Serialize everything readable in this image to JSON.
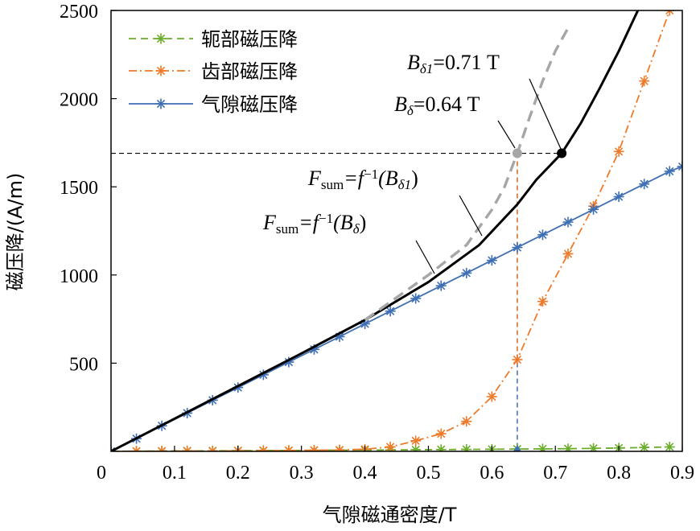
{
  "chart_data": {
    "type": "line",
    "xlabel": "气隙磁通密度/T",
    "ylabel": "磁压降/(A/m)",
    "xlim": [
      0,
      0.9
    ],
    "ylim": [
      0,
      2500
    ],
    "x_ticks": [
      0,
      0.1,
      0.2,
      0.3,
      0.4,
      0.5,
      0.6,
      0.7,
      0.8,
      0.9
    ],
    "x_tick_labels": [
      "0",
      "0.1",
      "0.2",
      "0.3",
      "0.4",
      "0.5",
      "0.6",
      "0.7",
      "0.8",
      "0.9"
    ],
    "y_ticks": [
      500,
      1000,
      1500,
      2000,
      2500
    ],
    "y_tick_labels": [
      "500",
      "1000",
      "1500",
      "2000",
      "2500"
    ],
    "legend_position": "top-left",
    "series": [
      {
        "name": "轭部磁压降",
        "color": "#6aad2a",
        "style": "dashed",
        "marker": "asterisk",
        "x": [
          0.0,
          0.04,
          0.08,
          0.12,
          0.16,
          0.2,
          0.24,
          0.28,
          0.32,
          0.36,
          0.4,
          0.44,
          0.48,
          0.52,
          0.56,
          0.6,
          0.64,
          0.68,
          0.72,
          0.76,
          0.8,
          0.84,
          0.88
        ],
        "y": [
          0,
          1,
          2,
          3,
          3,
          4,
          5,
          5,
          6,
          7,
          7,
          8,
          9,
          10,
          11,
          12,
          13,
          14,
          15,
          17,
          19,
          22,
          25
        ]
      },
      {
        "name": "齿部磁压降",
        "color": "#ee7a2a",
        "style": "dashdot",
        "marker": "asterisk",
        "x": [
          0.0,
          0.04,
          0.08,
          0.12,
          0.16,
          0.2,
          0.24,
          0.28,
          0.32,
          0.36,
          0.4,
          0.44,
          0.48,
          0.52,
          0.56,
          0.6,
          0.64,
          0.68,
          0.72,
          0.76,
          0.8,
          0.84,
          0.88
        ],
        "y": [
          0,
          1,
          1,
          2,
          2,
          3,
          4,
          5,
          6,
          8,
          12,
          25,
          60,
          100,
          170,
          310,
          520,
          850,
          1120,
          1390,
          1700,
          2100,
          2500
        ]
      },
      {
        "name": "气隙磁压降",
        "color": "#3f6fb5",
        "style": "solid",
        "marker": "asterisk",
        "x": [
          0.0,
          0.04,
          0.08,
          0.12,
          0.16,
          0.2,
          0.24,
          0.28,
          0.32,
          0.36,
          0.4,
          0.44,
          0.48,
          0.52,
          0.56,
          0.6,
          0.64,
          0.68,
          0.72,
          0.76,
          0.8,
          0.84,
          0.88,
          0.9
        ],
        "y": [
          0,
          72,
          145,
          217,
          290,
          362,
          434,
          506,
          578,
          650,
          723,
          795,
          867,
          939,
          1011,
          1083,
          1156,
          1228,
          1300,
          1372,
          1444,
          1516,
          1588,
          1615
        ]
      }
    ],
    "curves": [
      {
        "label_parts": [
          "F",
          "sum",
          "=f",
          "−1",
          "(B",
          "δ1",
          ")"
        ],
        "color": "#000000",
        "style": "solid",
        "x": [
          0.0,
          0.1,
          0.2,
          0.3,
          0.4,
          0.5,
          0.58,
          0.64,
          0.67,
          0.71,
          0.74,
          0.77,
          0.8,
          0.83
        ],
        "y": [
          0,
          185,
          370,
          555,
          745,
          960,
          1170,
          1400,
          1540,
          1690,
          1860,
          2060,
          2270,
          2500
        ]
      },
      {
        "label_parts": [
          "F",
          "sum",
          "=f",
          "−1",
          "(B",
          "δ",
          ")"
        ],
        "color": "#a6a6a6",
        "style": "dashed",
        "x": [
          0.4,
          0.5,
          0.56,
          0.6,
          0.62,
          0.64,
          0.66,
          0.68,
          0.7,
          0.72
        ],
        "y": [
          745,
          1000,
          1170,
          1370,
          1500,
          1690,
          1900,
          2100,
          2270,
          2400
        ]
      }
    ],
    "points": [
      {
        "label_parts": [
          "B",
          "δ1",
          "=0.71 T"
        ],
        "x": 0.71,
        "y": 1690,
        "color": "#000000"
      },
      {
        "label_parts": [
          "B",
          "δ",
          "=0.64 T"
        ],
        "x": 0.64,
        "y": 1690,
        "color": "#a6a6a6"
      }
    ],
    "reference_lines": {
      "y": 1690,
      "x": 0.64
    }
  }
}
